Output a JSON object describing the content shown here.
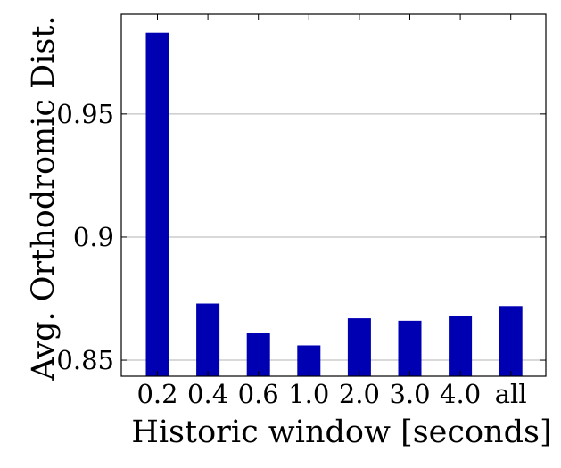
{
  "chart_data": {
    "type": "bar",
    "categories": [
      "0.2",
      "0.4",
      "0.6",
      "1.0",
      "2.0",
      "3.0",
      "4.0",
      "all"
    ],
    "values": [
      0.983,
      0.873,
      0.861,
      0.856,
      0.867,
      0.866,
      0.868,
      0.872
    ],
    "xlabel": "Historic window [seconds]",
    "ylabel": "Avg. Orthodromic Dist.",
    "ylim": [
      0.8435,
      0.9905
    ],
    "yticks": [
      0.85,
      0.9,
      0.95
    ],
    "ytick_labels": [
      "0.85",
      "0.9",
      "0.95"
    ],
    "grid": true,
    "grid_axis": "y",
    "bar_color": "#0000b3"
  }
}
